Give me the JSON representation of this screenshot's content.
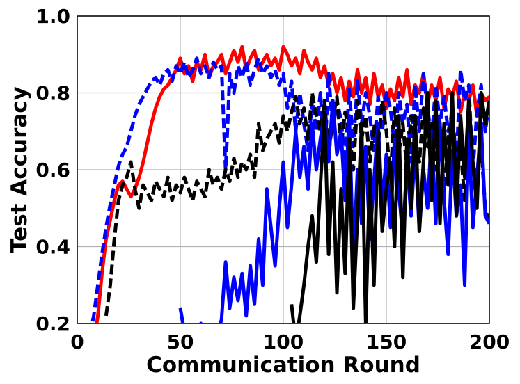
{
  "chart_data": {
    "type": "line",
    "title": "",
    "xlabel": "Communication Round",
    "ylabel": "Test Accuracy",
    "xlim": [
      0,
      200
    ],
    "ylim": [
      0.2,
      1.0
    ],
    "xticks": [
      0,
      50,
      100,
      150,
      200
    ],
    "xtick_labels": [
      "0",
      "50",
      "100",
      "150",
      "200"
    ],
    "yticks": [
      0.2,
      0.4,
      0.6,
      0.8,
      1.0
    ],
    "ytick_labels": [
      "0.2",
      "0.4",
      "0.6",
      "0.8",
      "1.0"
    ],
    "grid": true,
    "legend": "none",
    "series": [
      {
        "color": "#ff0000",
        "style": "solid",
        "x": [
          8,
          10,
          12,
          14,
          16,
          18,
          20,
          22,
          24,
          26,
          28,
          30,
          32,
          34,
          36,
          38,
          40,
          42,
          44,
          46,
          48,
          50,
          52,
          54,
          56,
          58,
          60,
          62,
          64,
          66,
          68,
          70,
          72,
          74,
          76,
          78,
          80,
          82,
          84,
          86,
          88,
          90,
          92,
          94,
          96,
          98,
          100,
          102,
          104,
          106,
          108,
          110,
          112,
          114,
          116,
          118,
          120,
          122,
          124,
          126,
          128,
          130,
          132,
          134,
          136,
          138,
          140,
          142,
          144,
          146,
          148,
          150,
          152,
          154,
          156,
          158,
          160,
          162,
          164,
          166,
          168,
          170,
          172,
          174,
          176,
          178,
          180,
          182,
          184,
          186,
          188,
          190,
          192,
          194,
          196,
          198,
          200
        ],
        "y": [
          0.15,
          0.22,
          0.33,
          0.42,
          0.47,
          0.52,
          0.56,
          0.57,
          0.55,
          0.53,
          0.55,
          0.58,
          0.62,
          0.67,
          0.72,
          0.76,
          0.79,
          0.81,
          0.82,
          0.84,
          0.86,
          0.89,
          0.85,
          0.87,
          0.83,
          0.88,
          0.86,
          0.9,
          0.84,
          0.87,
          0.88,
          0.9,
          0.85,
          0.88,
          0.91,
          0.88,
          0.92,
          0.86,
          0.89,
          0.91,
          0.86,
          0.88,
          0.9,
          0.87,
          0.89,
          0.86,
          0.92,
          0.9,
          0.87,
          0.89,
          0.85,
          0.91,
          0.88,
          0.86,
          0.89,
          0.84,
          0.87,
          0.82,
          0.85,
          0.8,
          0.84,
          0.78,
          0.83,
          0.79,
          0.86,
          0.8,
          0.84,
          0.77,
          0.85,
          0.79,
          0.82,
          0.76,
          0.81,
          0.78,
          0.84,
          0.79,
          0.86,
          0.77,
          0.82,
          0.8,
          0.85,
          0.77,
          0.82,
          0.78,
          0.84,
          0.76,
          0.81,
          0.79,
          0.83,
          0.75,
          0.8,
          0.78,
          0.82,
          0.74,
          0.8,
          0.78,
          0.79
        ]
      },
      {
        "color": "#0000ff",
        "style": "dashed",
        "x": [
          6,
          8,
          10,
          12,
          14,
          16,
          18,
          20,
          22,
          24,
          26,
          28,
          30,
          32,
          34,
          36,
          38,
          40,
          42,
          44,
          46,
          48,
          50,
          52,
          54,
          56,
          58,
          60,
          62,
          64,
          66,
          68,
          70,
          72,
          73,
          74,
          76,
          78,
          80,
          82,
          84,
          86,
          88,
          90,
          92,
          94,
          96,
          98,
          100,
          102,
          104,
          106,
          108,
          110,
          112,
          114,
          116,
          118,
          120,
          122,
          124,
          126,
          128,
          130,
          132,
          134,
          136,
          138,
          140,
          142,
          144,
          146,
          148,
          150,
          152,
          154,
          156,
          158,
          160,
          162,
          164,
          166,
          168,
          170,
          172,
          174,
          176,
          178,
          180,
          182,
          184,
          186,
          188,
          190,
          192,
          194,
          196,
          198,
          200
        ],
        "y": [
          0.17,
          0.22,
          0.3,
          0.38,
          0.45,
          0.51,
          0.56,
          0.61,
          0.64,
          0.66,
          0.7,
          0.74,
          0.77,
          0.79,
          0.81,
          0.83,
          0.84,
          0.82,
          0.85,
          0.86,
          0.83,
          0.87,
          0.85,
          0.88,
          0.84,
          0.86,
          0.89,
          0.85,
          0.87,
          0.84,
          0.88,
          0.86,
          0.87,
          0.6,
          0.72,
          0.85,
          0.8,
          0.87,
          0.84,
          0.88,
          0.82,
          0.86,
          0.89,
          0.85,
          0.87,
          0.84,
          0.86,
          0.82,
          0.85,
          0.76,
          0.83,
          0.7,
          0.8,
          0.72,
          0.65,
          0.78,
          0.7,
          0.8,
          0.62,
          0.85,
          0.7,
          0.78,
          0.73,
          0.62,
          0.81,
          0.66,
          0.83,
          0.72,
          0.8,
          0.74,
          0.65,
          0.79,
          0.7,
          0.8,
          0.76,
          0.66,
          0.8,
          0.72,
          0.77,
          0.62,
          0.82,
          0.7,
          0.85,
          0.76,
          0.68,
          0.82,
          0.72,
          0.79,
          0.7,
          0.75,
          0.62,
          0.86,
          0.78,
          0.82,
          0.6,
          0.75,
          0.82,
          0.7,
          0.78
        ]
      },
      {
        "color": "#000000",
        "style": "dashed",
        "x": [
          14,
          16,
          18,
          20,
          22,
          24,
          26,
          28,
          30,
          32,
          34,
          36,
          38,
          40,
          42,
          44,
          46,
          48,
          50,
          52,
          54,
          56,
          58,
          60,
          62,
          64,
          66,
          68,
          70,
          72,
          74,
          76,
          78,
          80,
          82,
          84,
          86,
          88,
          90,
          92,
          94,
          96,
          98,
          100,
          102,
          104,
          106,
          108,
          110,
          112,
          114,
          116,
          118,
          120,
          122,
          124,
          126,
          128,
          130,
          132,
          134,
          136,
          138,
          140,
          142,
          144,
          146,
          148,
          150,
          152,
          154,
          156,
          158,
          160,
          162,
          164,
          166,
          168,
          170,
          172,
          174,
          176,
          178,
          180,
          182,
          184,
          186,
          188,
          190,
          192,
          194,
          196,
          198,
          200
        ],
        "y": [
          0.22,
          0.3,
          0.42,
          0.52,
          0.56,
          0.58,
          0.62,
          0.55,
          0.5,
          0.56,
          0.54,
          0.52,
          0.57,
          0.55,
          0.53,
          0.58,
          0.52,
          0.56,
          0.54,
          0.58,
          0.55,
          0.52,
          0.57,
          0.55,
          0.53,
          0.6,
          0.56,
          0.58,
          0.55,
          0.6,
          0.57,
          0.63,
          0.58,
          0.62,
          0.6,
          0.64,
          0.58,
          0.72,
          0.65,
          0.68,
          0.7,
          0.72,
          0.67,
          0.74,
          0.7,
          0.75,
          0.79,
          0.72,
          0.76,
          0.68,
          0.8,
          0.74,
          0.7,
          0.78,
          0.64,
          0.73,
          0.79,
          0.66,
          0.75,
          0.7,
          0.6,
          0.78,
          0.68,
          0.74,
          0.62,
          0.72,
          0.66,
          0.78,
          0.7,
          0.58,
          0.76,
          0.64,
          0.72,
          0.6,
          0.74,
          0.68,
          0.62,
          0.76,
          0.66,
          0.72,
          0.6,
          0.7,
          0.54,
          0.68,
          0.74,
          0.6,
          0.66,
          0.52,
          0.7,
          0.62,
          0.56,
          0.66,
          0.5,
          0.46
        ]
      },
      {
        "color": "#0000ff",
        "style": "solid",
        "x": [
          50,
          52,
          54,
          56,
          58,
          60,
          62,
          64,
          66,
          68,
          70,
          72,
          74,
          76,
          78,
          80,
          82,
          84,
          86,
          88,
          90,
          92,
          94,
          96,
          98,
          100,
          102,
          104,
          106,
          108,
          110,
          112,
          114,
          116,
          118,
          120,
          122,
          124,
          126,
          128,
          130,
          132,
          134,
          136,
          138,
          140,
          142,
          144,
          146,
          148,
          150,
          152,
          154,
          156,
          158,
          160,
          162,
          164,
          166,
          168,
          170,
          172,
          174,
          176,
          178,
          180,
          182,
          184,
          186,
          188,
          190,
          192,
          194,
          196,
          198,
          200
        ],
        "y": [
          0.24,
          0.18,
          0.15,
          0.17,
          0.14,
          0.2,
          0.18,
          0.16,
          0.19,
          0.17,
          0.21,
          0.36,
          0.24,
          0.32,
          0.26,
          0.33,
          0.22,
          0.35,
          0.25,
          0.42,
          0.3,
          0.55,
          0.45,
          0.35,
          0.5,
          0.62,
          0.45,
          0.56,
          0.7,
          0.58,
          0.66,
          0.55,
          0.72,
          0.6,
          0.68,
          0.75,
          0.62,
          0.78,
          0.64,
          0.7,
          0.52,
          0.74,
          0.36,
          0.6,
          0.46,
          0.66,
          0.42,
          0.57,
          0.72,
          0.5,
          0.64,
          0.45,
          0.68,
          0.55,
          0.42,
          0.62,
          0.48,
          0.66,
          0.44,
          0.6,
          0.5,
          0.7,
          0.46,
          0.72,
          0.52,
          0.38,
          0.65,
          0.48,
          0.56,
          0.3,
          0.7,
          0.45,
          0.58,
          0.72,
          0.48,
          0.46
        ]
      },
      {
        "color": "#000000",
        "style": "solid",
        "x": [
          104,
          106,
          108,
          110,
          112,
          114,
          116,
          118,
          120,
          122,
          124,
          126,
          128,
          130,
          132,
          134,
          136,
          138,
          140,
          142,
          144,
          146,
          148,
          150,
          152,
          154,
          156,
          158,
          160,
          162,
          164,
          166,
          168,
          170,
          172,
          174,
          176,
          178,
          180,
          182,
          184,
          186,
          188,
          190,
          192,
          194,
          196,
          198,
          200
        ],
        "y": [
          0.25,
          0.15,
          0.22,
          0.3,
          0.4,
          0.48,
          0.36,
          0.56,
          0.75,
          0.38,
          0.62,
          0.28,
          0.55,
          0.33,
          0.68,
          0.24,
          0.48,
          0.72,
          0.2,
          0.6,
          0.3,
          0.7,
          0.44,
          0.55,
          0.62,
          0.4,
          0.74,
          0.32,
          0.68,
          0.5,
          0.74,
          0.44,
          0.62,
          0.8,
          0.52,
          0.78,
          0.46,
          0.72,
          0.56,
          0.8,
          0.48,
          0.74,
          0.58,
          0.78,
          0.62,
          0.5,
          0.8,
          0.72,
          0.78
        ]
      }
    ]
  }
}
